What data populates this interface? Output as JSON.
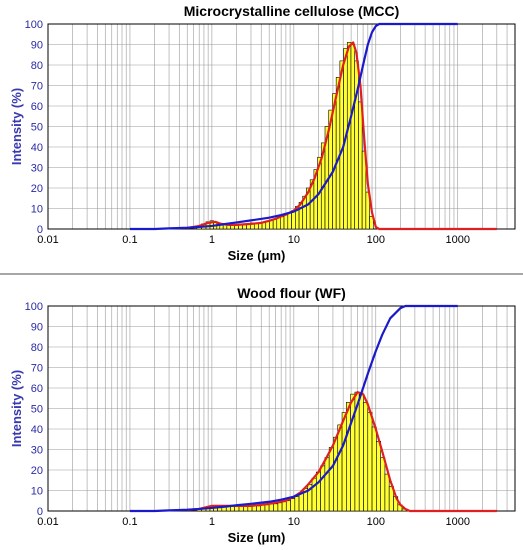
{
  "chart_data": [
    {
      "type": "bar",
      "title": "Microcrystalline cellulose (MCC)",
      "xlabel": "Size (μm)",
      "ylabel": "Intensity (%)",
      "xscale": "log",
      "xlim": [
        0.01,
        5000
      ],
      "ylim": [
        0,
        100
      ],
      "xticks": [
        "0.01",
        "0.1",
        "1",
        "10",
        "100",
        "1000"
      ],
      "yticks": [
        "0",
        "10",
        "20",
        "30",
        "40",
        "50",
        "60",
        "70",
        "80",
        "90",
        "100"
      ],
      "grid": true,
      "colors": {
        "bars": "#ffff33",
        "frequency_line": "#e02020",
        "cumulative_line": "#1a1acc"
      },
      "series": [
        {
          "kind": "histogram",
          "x": [
            0.7,
            0.8,
            0.9,
            1.0,
            1.1,
            1.2,
            1.3,
            1.45,
            1.6,
            1.8,
            2.0,
            2.25,
            2.5,
            2.8,
            3.1,
            3.5,
            3.9,
            4.3,
            4.8,
            5.3,
            5.9,
            6.5,
            7.2,
            8.0,
            8.9,
            9.9,
            11,
            12.2,
            13.5,
            15,
            16.7,
            18.5,
            20.5,
            22.8,
            25.3,
            28.1,
            31.2,
            34.6,
            38.4,
            42.6,
            47.3,
            52.5,
            58.3,
            64.7,
            71.8,
            79.7,
            88.5
          ],
          "y": [
            1.5,
            2.5,
            3.5,
            4,
            3.5,
            2.5,
            2,
            2,
            2,
            2,
            2,
            2.5,
            2.5,
            2.5,
            3,
            3,
            3,
            3.5,
            4,
            4.5,
            5,
            5.5,
            6,
            7,
            8,
            9,
            11,
            13,
            16,
            20,
            24,
            29,
            35,
            42,
            50,
            58,
            66,
            74,
            82,
            88,
            91,
            90,
            82,
            62,
            38,
            18,
            6
          ]
        },
        {
          "kind": "frequency",
          "x": [
            0.5,
            0.7,
            0.9,
            1.1,
            1.3,
            1.6,
            2,
            3,
            4,
            5,
            6,
            8,
            10,
            12,
            15,
            18,
            22,
            27,
            33,
            40,
            47,
            53,
            58,
            65,
            72,
            80,
            90,
            100,
            110,
            120,
            150,
            200,
            300,
            500,
            1000,
            3000
          ],
          "y": [
            0.5,
            1.5,
            3,
            3.5,
            2.5,
            2,
            2,
            2.5,
            3,
            4,
            5,
            7,
            9,
            12,
            18,
            25,
            35,
            49,
            65,
            80,
            89,
            91,
            86,
            70,
            45,
            22,
            8,
            1,
            0,
            0,
            0,
            0,
            0,
            0,
            0,
            0
          ]
        },
        {
          "kind": "cumulative",
          "x": [
            0.1,
            0.2,
            0.3,
            0.5,
            0.7,
            1,
            1.5,
            2,
            3,
            5,
            7,
            10,
            15,
            20,
            30,
            40,
            50,
            60,
            70,
            80,
            90,
            100,
            110,
            150,
            300,
            1000
          ],
          "y": [
            0,
            0,
            0.3,
            0.6,
            1,
            1.5,
            2.5,
            3.2,
            4.2,
            5.5,
            6.8,
            8.5,
            12,
            17,
            28,
            40,
            55,
            68,
            80,
            90,
            96,
            99,
            100,
            100,
            100,
            100
          ]
        }
      ]
    },
    {
      "type": "bar",
      "title": "Wood flour (WF)",
      "xlabel": "Size (μm)",
      "ylabel": "Intensity (%)",
      "xscale": "log",
      "xlim": [
        0.01,
        5000
      ],
      "ylim": [
        0,
        100
      ],
      "xticks": [
        "0.01",
        "0.1",
        "1",
        "10",
        "100",
        "1000"
      ],
      "yticks": [
        "0",
        "10",
        "20",
        "30",
        "40",
        "50",
        "60",
        "70",
        "80",
        "90",
        "100"
      ],
      "grid": true,
      "colors": {
        "bars": "#ffff33",
        "frequency_line": "#e02020",
        "cumulative_line": "#1a1acc"
      },
      "series": [
        {
          "kind": "histogram",
          "x": [
            0.7,
            0.8,
            0.9,
            1.0,
            1.1,
            1.25,
            1.4,
            1.6,
            1.8,
            2.0,
            2.3,
            2.6,
            2.9,
            3.3,
            3.7,
            4.2,
            4.7,
            5.3,
            6.0,
            6.8,
            7.6,
            8.6,
            9.7,
            10.9,
            12.3,
            13.9,
            15.7,
            17.7,
            20,
            22.5,
            25.4,
            28.7,
            32.3,
            36.5,
            41.2,
            46.4,
            52.4,
            59.1,
            66.7,
            75.2,
            84.8,
            95.7,
            108,
            122,
            137,
            155,
            175,
            197,
            222
          ],
          "y": [
            1,
            1.5,
            2,
            2.5,
            2.5,
            2.5,
            2.5,
            2.5,
            2.5,
            2.5,
            2.5,
            2.5,
            2.5,
            2.5,
            2.5,
            3,
            3,
            3.5,
            3.5,
            4,
            4.5,
            5,
            6,
            7,
            9,
            11,
            13,
            16,
            19,
            22,
            26,
            31,
            36,
            42,
            48,
            53,
            57,
            58,
            57,
            53,
            48,
            41,
            34,
            26,
            18,
            12,
            7,
            3,
            1
          ]
        },
        {
          "kind": "frequency",
          "x": [
            0.5,
            0.7,
            1,
            1.5,
            2,
            3,
            4,
            5,
            6,
            8,
            10,
            12,
            15,
            20,
            25,
            30,
            40,
            50,
            60,
            70,
            80,
            100,
            120,
            150,
            180,
            200,
            230,
            260,
            300,
            500,
            1000,
            3000
          ],
          "y": [
            0.5,
            1,
            2.5,
            2.5,
            2.5,
            2.5,
            3,
            3.5,
            4,
            5,
            7,
            9,
            13,
            19,
            26,
            32,
            44,
            53,
            58,
            57,
            52,
            40,
            29,
            15,
            6,
            3,
            1,
            0,
            0,
            0,
            0,
            0
          ]
        },
        {
          "kind": "cumulative",
          "x": [
            0.1,
            0.2,
            0.3,
            0.5,
            0.7,
            1,
            1.5,
            2,
            3,
            5,
            7,
            10,
            15,
            20,
            30,
            40,
            50,
            60,
            70,
            80,
            100,
            120,
            150,
            200,
            230,
            300,
            1000
          ],
          "y": [
            0,
            0,
            0.3,
            0.6,
            1,
            1.5,
            2.2,
            2.8,
            3.5,
            4.5,
            5.5,
            7,
            10,
            14,
            22,
            32,
            43,
            52,
            60,
            67,
            78,
            86,
            94,
            99,
            100,
            100,
            100
          ]
        }
      ]
    }
  ]
}
